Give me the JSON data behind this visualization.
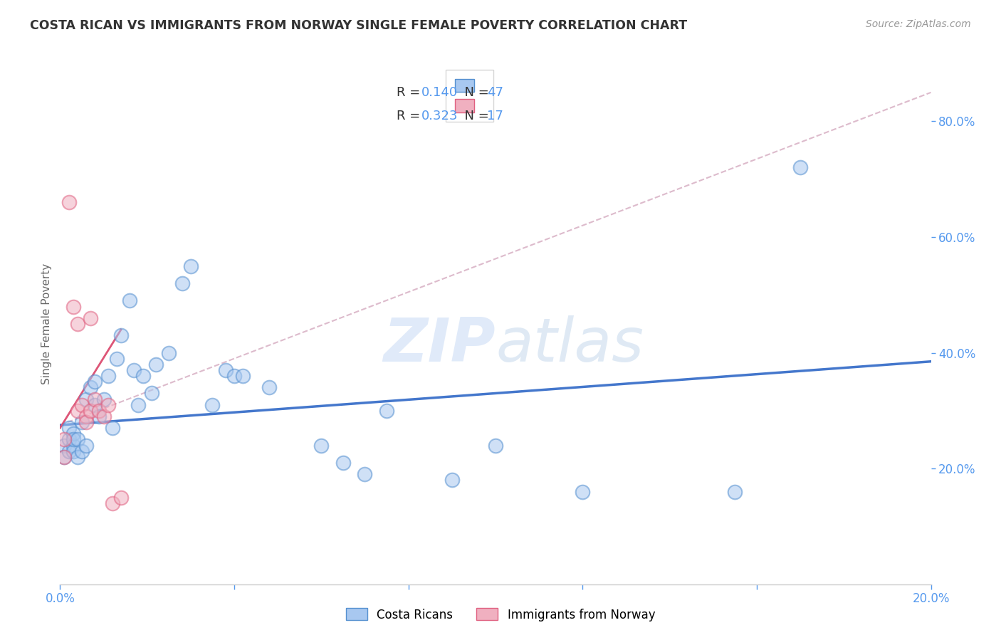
{
  "title": "COSTA RICAN VS IMMIGRANTS FROM NORWAY SINGLE FEMALE POVERTY CORRELATION CHART",
  "source": "Source: ZipAtlas.com",
  "ylabel": "Single Female Poverty",
  "legend_r_values": [
    "0.140",
    "0.323"
  ],
  "legend_n_values": [
    "47",
    "17"
  ],
  "xmin": 0.0,
  "xmax": 0.2,
  "ymin": 0.0,
  "ymax": 0.9,
  "blue_color": "#a8c8f0",
  "pink_color": "#f0b0c0",
  "blue_edge_color": "#5590d0",
  "pink_edge_color": "#e06080",
  "blue_line_color": "#4477cc",
  "pink_line_color": "#dd5577",
  "diagonal_color": "#ddbbcc",
  "watermark_zip": "ZIP",
  "watermark_atlas": "atlas",
  "background_color": "#ffffff",
  "title_color": "#333333",
  "axis_label_color": "#666666",
  "right_tick_color": "#5599ee",
  "bottom_tick_color": "#5599ee",
  "grid_color": "#dddddd",
  "costa_rican_x": [
    0.001,
    0.001,
    0.002,
    0.002,
    0.002,
    0.003,
    0.003,
    0.003,
    0.003,
    0.004,
    0.004,
    0.005,
    0.005,
    0.006,
    0.006,
    0.007,
    0.008,
    0.008,
    0.009,
    0.01,
    0.011,
    0.012,
    0.013,
    0.014,
    0.016,
    0.017,
    0.018,
    0.019,
    0.021,
    0.022,
    0.025,
    0.028,
    0.03,
    0.035,
    0.038,
    0.04,
    0.042,
    0.048,
    0.06,
    0.065,
    0.07,
    0.075,
    0.09,
    0.1,
    0.12,
    0.155,
    0.17
  ],
  "costa_rican_y": [
    0.24,
    0.22,
    0.25,
    0.23,
    0.27,
    0.24,
    0.26,
    0.23,
    0.25,
    0.25,
    0.22,
    0.23,
    0.28,
    0.32,
    0.24,
    0.34,
    0.31,
    0.35,
    0.29,
    0.32,
    0.36,
    0.27,
    0.39,
    0.43,
    0.49,
    0.37,
    0.31,
    0.36,
    0.33,
    0.38,
    0.4,
    0.52,
    0.55,
    0.31,
    0.37,
    0.36,
    0.36,
    0.34,
    0.24,
    0.21,
    0.19,
    0.3,
    0.18,
    0.24,
    0.16,
    0.16,
    0.72
  ],
  "norway_x": [
    0.001,
    0.001,
    0.002,
    0.003,
    0.004,
    0.004,
    0.005,
    0.006,
    0.006,
    0.007,
    0.007,
    0.008,
    0.009,
    0.01,
    0.011,
    0.012,
    0.014
  ],
  "norway_y": [
    0.25,
    0.22,
    0.66,
    0.48,
    0.45,
    0.3,
    0.31,
    0.29,
    0.28,
    0.3,
    0.46,
    0.32,
    0.3,
    0.29,
    0.31,
    0.14,
    0.15
  ],
  "blue_trend": [
    0.0,
    0.275,
    0.2,
    0.385
  ],
  "pink_trend": [
    0.0,
    0.27,
    0.014,
    0.44
  ],
  "diag_line": [
    0.0,
    0.275,
    0.2,
    0.85
  ]
}
